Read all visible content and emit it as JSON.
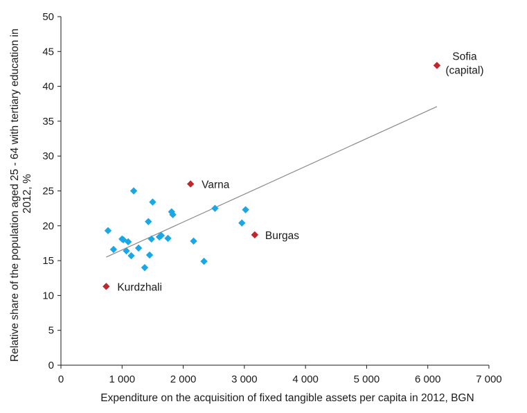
{
  "chart_data": {
    "type": "scatter",
    "xlabel": "Expenditure on the acquisition of fixed tangible assets per capita in 2012, BGN",
    "ylabel_line1": "Relative share of the population aged 25 - 64 with tertiary education in",
    "ylabel_line2": "2012, %",
    "xlim": [
      0,
      7000
    ],
    "ylim": [
      0,
      50
    ],
    "x_ticks": [
      0,
      1000,
      2000,
      3000,
      4000,
      5000,
      6000,
      7000
    ],
    "x_tick_labels": [
      "0",
      "1 000",
      "2 000",
      "3 000",
      "4 000",
      "5 000",
      "6 000",
      "7 000"
    ],
    "y_ticks": [
      0,
      5,
      10,
      15,
      20,
      25,
      30,
      35,
      40,
      45,
      50
    ],
    "y_tick_labels": [
      "0",
      "5",
      "10",
      "15",
      "20",
      "25",
      "30",
      "35",
      "40",
      "45",
      "50"
    ],
    "grid": false,
    "colors": {
      "regular": "#1aa7e6",
      "highlight": "#c0272d",
      "trendline": "#8a8a8a"
    },
    "series": [
      {
        "points": [
          {
            "x": 770,
            "y": 19.3
          },
          {
            "x": 860,
            "y": 16.6
          },
          {
            "x": 1000,
            "y": 18.1
          },
          {
            "x": 1020,
            "y": 18.0
          },
          {
            "x": 1070,
            "y": 16.4
          },
          {
            "x": 1100,
            "y": 17.7
          },
          {
            "x": 1150,
            "y": 15.7
          },
          {
            "x": 1190,
            "y": 25.0
          },
          {
            "x": 1270,
            "y": 16.8
          },
          {
            "x": 1370,
            "y": 14.0
          },
          {
            "x": 1430,
            "y": 20.6
          },
          {
            "x": 1450,
            "y": 15.8
          },
          {
            "x": 1480,
            "y": 18.1
          },
          {
            "x": 1500,
            "y": 23.4
          },
          {
            "x": 1610,
            "y": 18.4
          },
          {
            "x": 1640,
            "y": 18.6
          },
          {
            "x": 1750,
            "y": 18.2
          },
          {
            "x": 1810,
            "y": 22.0
          },
          {
            "x": 1830,
            "y": 21.6
          },
          {
            "x": 2170,
            "y": 17.8
          },
          {
            "x": 2340,
            "y": 14.9
          },
          {
            "x": 2520,
            "y": 22.5
          },
          {
            "x": 2960,
            "y": 20.4
          },
          {
            "x": 3020,
            "y": 22.3
          }
        ]
      },
      {
        "points": [
          {
            "x": 6150,
            "y": 43.0,
            "label_lines": [
              "Sofia",
              "(capital)"
            ]
          },
          {
            "x": 2120,
            "y": 26.0,
            "label_lines": [
              "Varna"
            ]
          },
          {
            "x": 3170,
            "y": 18.7,
            "label_lines": [
              "Burgas"
            ]
          },
          {
            "x": 740,
            "y": 11.3,
            "label_lines": [
              "Kurdzhali"
            ]
          }
        ]
      }
    ],
    "trendline": {
      "x": [
        740,
        6150
      ],
      "y": [
        15.5,
        37.1
      ]
    }
  }
}
